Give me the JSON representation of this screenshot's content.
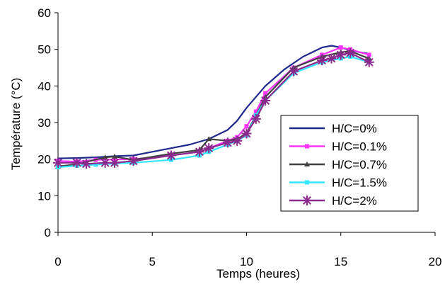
{
  "chart_data": {
    "type": "line",
    "title": "",
    "xlabel": "Temps (heures)",
    "ylabel": "Température (°C)",
    "xlim": [
      0,
      20
    ],
    "ylim": [
      0,
      60
    ],
    "xticks": [
      0,
      5,
      10,
      15,
      20
    ],
    "yticks": [
      0,
      10,
      20,
      30,
      40,
      50,
      60
    ],
    "grid": false,
    "legend_position": "right",
    "series": [
      {
        "name": "H/C=0%",
        "color": "#1f2a8c",
        "marker": "none",
        "x": [
          0,
          1,
          2,
          3,
          4,
          5,
          6,
          7,
          8,
          9,
          9.5,
          10,
          10.5,
          11,
          12,
          13,
          14,
          14.5,
          15,
          15.5,
          16,
          16.5
        ],
        "y": [
          20.2,
          20.3,
          20.5,
          20.8,
          21,
          22,
          23,
          24,
          25.5,
          28,
          30.5,
          34,
          37,
          40,
          44.5,
          48,
          50.5,
          51,
          50.5,
          49.8,
          49.2,
          48.8
        ]
      },
      {
        "name": "H/C=0.1%",
        "color": "#ff33ff",
        "marker": "square",
        "x": [
          0,
          1,
          2,
          3,
          4,
          6,
          7.5,
          8,
          9,
          9.5,
          10,
          10.5,
          11,
          12.5,
          14,
          15,
          15.5,
          16.5
        ],
        "y": [
          19.5,
          19.3,
          19.8,
          19.9,
          20,
          21,
          22,
          23,
          25,
          26,
          29,
          33,
          38,
          45,
          48.5,
          50.5,
          50,
          48.5
        ]
      },
      {
        "name": "H/C=0.7%",
        "color": "#404040",
        "marker": "triangle",
        "x": [
          0,
          1,
          2.5,
          3,
          4,
          6,
          7.5,
          8,
          9,
          9.5,
          10,
          10.5,
          11,
          12.5,
          14,
          15,
          15.5,
          16.5
        ],
        "y": [
          18,
          18.6,
          20.5,
          20.7,
          19.8,
          21.5,
          22.5,
          25.5,
          25,
          25.5,
          27,
          32,
          37,
          45,
          48,
          49.2,
          49.5,
          47.5
        ]
      },
      {
        "name": "H/C=1.5%",
        "color": "#33e6ff",
        "marker": "square",
        "x": [
          0,
          1,
          2,
          3,
          4,
          6,
          7.5,
          8,
          9,
          9.5,
          10,
          10.5,
          11,
          12.5,
          14,
          15,
          15.5,
          16.5
        ],
        "y": [
          17.8,
          18.2,
          18.5,
          18.8,
          19,
          19.8,
          21,
          22,
          24,
          25,
          26.5,
          32,
          36,
          43.5,
          46.5,
          47.5,
          48,
          46.5
        ]
      },
      {
        "name": "H/C=2%",
        "color": "#8b2a8c",
        "marker": "star",
        "x": [
          0,
          1,
          1.5,
          2.5,
          3,
          4,
          6,
          7.5,
          8,
          9,
          9.5,
          10,
          10.5,
          11,
          12.5,
          14,
          14.5,
          15,
          15.5,
          16.5
        ],
        "y": [
          19,
          19,
          18.7,
          19,
          19,
          19.5,
          21,
          22,
          23,
          24.5,
          25,
          27,
          31,
          36,
          44,
          47,
          47.5,
          48.5,
          49,
          46.5
        ]
      }
    ]
  }
}
